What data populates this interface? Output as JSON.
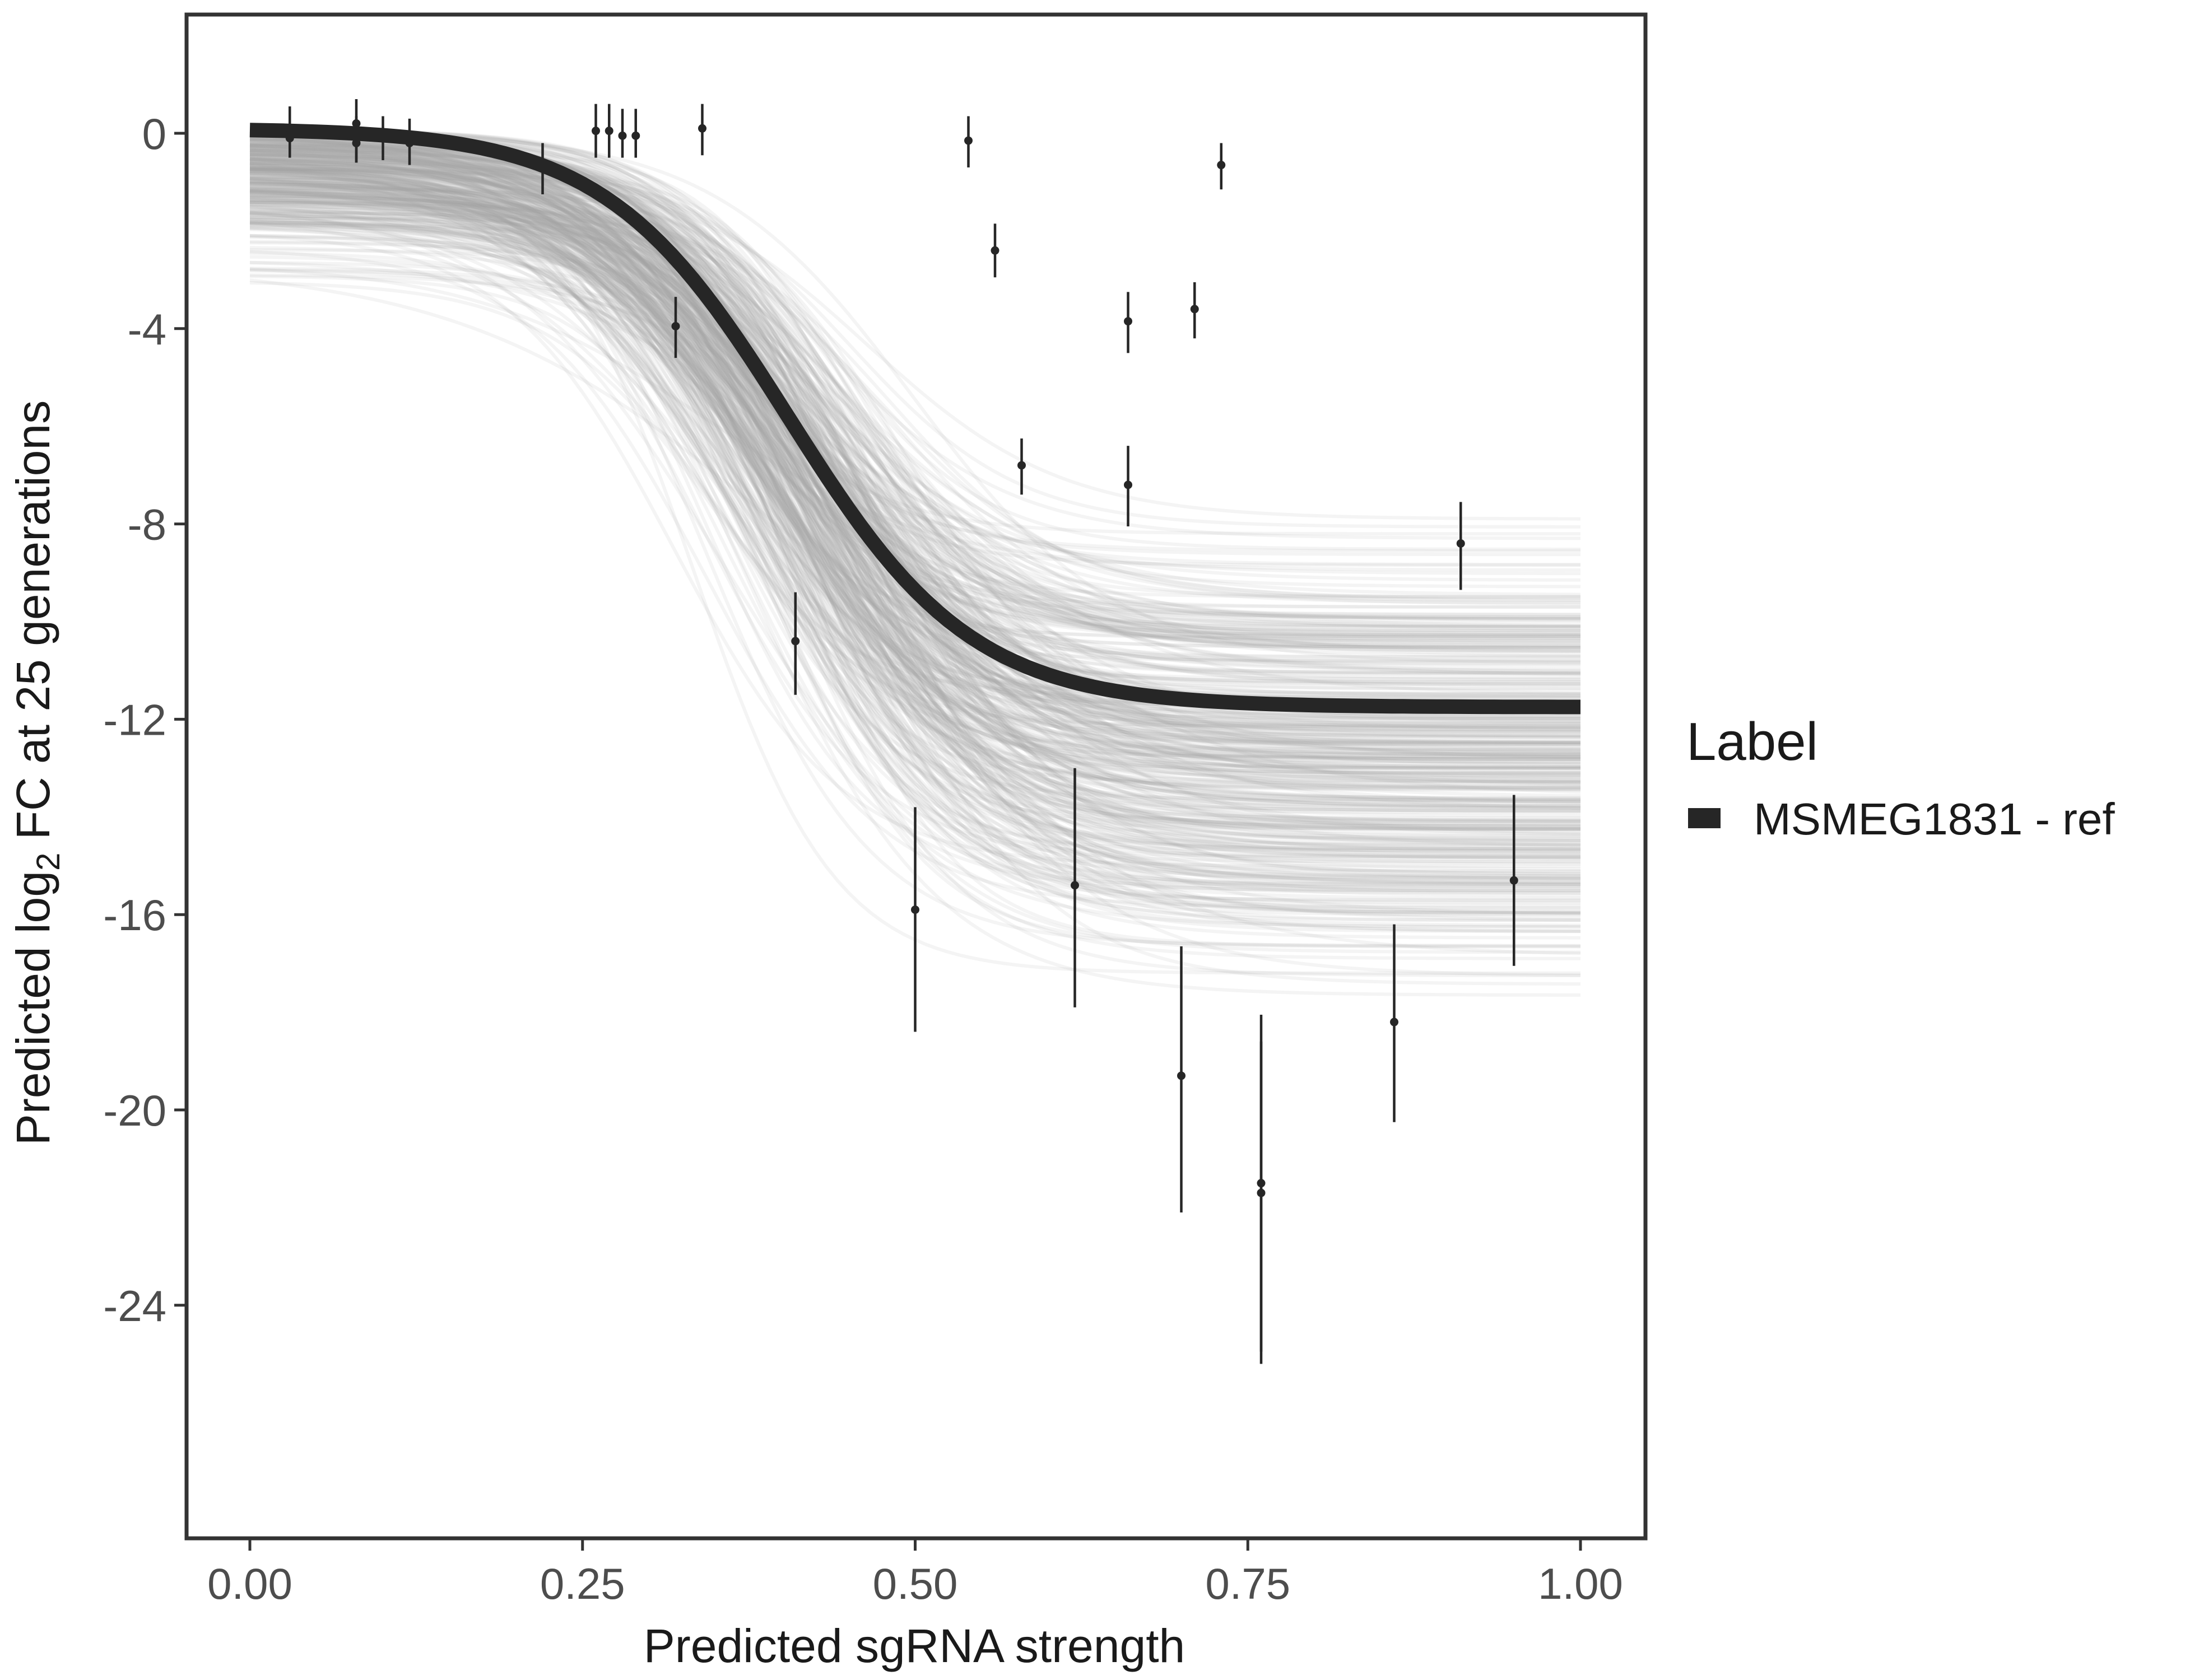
{
  "chart_data": {
    "type": "line",
    "xlabel": "Predicted sgRNA strength",
    "ylabel": {
      "prefix": "Predicted  log",
      "subscript": "2",
      "suffix": " FC at 25 generations"
    },
    "xlim": [
      -0.1,
      2.1
    ],
    "ylim": [
      -29.5,
      2.5
    ],
    "x_ticks": [
      0.0,
      0.25,
      0.5,
      0.75,
      1.0
    ],
    "x_tick_labels": [
      "0.00",
      "0.25",
      "0.50",
      "0.75",
      "1.00"
    ],
    "y_ticks": [
      0,
      -4,
      -8,
      -12,
      -16,
      -20,
      -24
    ],
    "y_tick_labels": [
      "0",
      "-4",
      "-8",
      "-12",
      "-16",
      "-20",
      "-24"
    ],
    "grid": false,
    "legend": {
      "title": "Label",
      "position": "right",
      "entries": [
        {
          "name": "MSMEG1831 - ref",
          "color": "#262626"
        }
      ]
    },
    "fit": {
      "name": "MSMEG1831 - ref",
      "color": "#262626",
      "top": 0.1,
      "bottom": -11.75,
      "midpoint": 0.405,
      "steepness": 14.5
    },
    "posterior_draws": {
      "color": "#a6a6a6",
      "count": 400,
      "top_range": [
        -3.6,
        0.15
      ],
      "bottom_range": [
        -19.2,
        -6.5
      ],
      "midpoint_range": [
        0.3,
        0.52
      ],
      "steepness_range": [
        8,
        22
      ]
    },
    "points": [
      {
        "x": 0.03,
        "y": 0.1,
        "lo": -0.35,
        "hi": 0.55
      },
      {
        "x": 0.03,
        "y": -0.1,
        "lo": -0.5,
        "hi": 0.35
      },
      {
        "x": 0.08,
        "y": 0.2,
        "lo": -0.3,
        "hi": 0.7
      },
      {
        "x": 0.08,
        "y": -0.1,
        "lo": -0.6,
        "hi": 0.35
      },
      {
        "x": 0.08,
        "y": -0.2,
        "lo": -0.6,
        "hi": 0.25
      },
      {
        "x": 0.1,
        "y": -0.05,
        "lo": -0.55,
        "hi": 0.35
      },
      {
        "x": 0.12,
        "y": -0.2,
        "lo": -0.65,
        "hi": 0.3
      },
      {
        "x": 0.22,
        "y": -0.7,
        "lo": -1.25,
        "hi": -0.2
      },
      {
        "x": 0.26,
        "y": 0.05,
        "lo": -0.5,
        "hi": 0.6
      },
      {
        "x": 0.27,
        "y": 0.05,
        "lo": -0.5,
        "hi": 0.6
      },
      {
        "x": 0.28,
        "y": -0.05,
        "lo": -0.5,
        "hi": 0.5
      },
      {
        "x": 0.29,
        "y": -0.05,
        "lo": -0.5,
        "hi": 0.5
      },
      {
        "x": 0.32,
        "y": -3.95,
        "lo": -4.6,
        "hi": -3.35
      },
      {
        "x": 0.34,
        "y": 0.1,
        "lo": -0.45,
        "hi": 0.6
      },
      {
        "x": 0.41,
        "y": -10.4,
        "lo": -11.5,
        "hi": -9.4
      },
      {
        "x": 0.5,
        "y": -15.9,
        "lo": -18.4,
        "hi": -13.8
      },
      {
        "x": 0.54,
        "y": -0.15,
        "lo": -0.7,
        "hi": 0.35
      },
      {
        "x": 0.56,
        "y": -2.4,
        "lo": -2.95,
        "hi": -1.85
      },
      {
        "x": 0.58,
        "y": -6.8,
        "lo": -7.4,
        "hi": -6.25
      },
      {
        "x": 0.62,
        "y": -15.4,
        "lo": -17.9,
        "hi": -13.0
      },
      {
        "x": 0.66,
        "y": -3.85,
        "lo": -4.5,
        "hi": -3.25
      },
      {
        "x": 0.66,
        "y": -7.2,
        "lo": -8.05,
        "hi": -6.4
      },
      {
        "x": 0.7,
        "y": -19.3,
        "lo": -22.1,
        "hi": -16.65
      },
      {
        "x": 0.71,
        "y": -3.6,
        "lo": -4.2,
        "hi": -3.05
      },
      {
        "x": 0.73,
        "y": -0.65,
        "lo": -1.15,
        "hi": -0.2
      },
      {
        "x": 0.76,
        "y": -21.7,
        "lo": -25.2,
        "hi": -18.6
      },
      {
        "x": 0.76,
        "y": -21.5,
        "lo": -24.95,
        "hi": -18.05
      },
      {
        "x": 0.86,
        "y": -18.2,
        "lo": -20.25,
        "hi": -16.2
      },
      {
        "x": 0.91,
        "y": -8.4,
        "lo": -9.35,
        "hi": -7.55
      },
      {
        "x": 0.95,
        "y": -15.3,
        "lo": -17.05,
        "hi": -13.55
      }
    ]
  }
}
